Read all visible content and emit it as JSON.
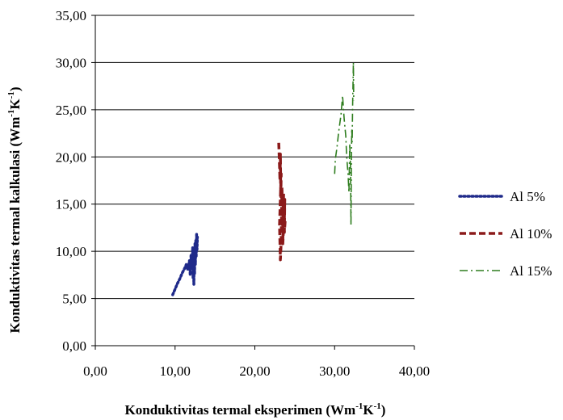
{
  "chart_data": {
    "type": "line",
    "xlabel": {
      "main": "Konduktivitas termal eksperimen (Wm",
      "sup1": "-1",
      "mid": "K",
      "sup2": "-1",
      "end": ")"
    },
    "ylabel": {
      "main": "Konduktivitas termal kalkulasi (Wm",
      "sup1": "-1",
      "mid": "K",
      "sup2": "-1",
      "end": ")"
    },
    "xlim": [
      0,
      40
    ],
    "ylim": [
      0,
      35
    ],
    "xticks": [
      "0,00",
      "10,00",
      "20,00",
      "30,00",
      "40,00"
    ],
    "yticks": [
      "0,00",
      "5,00",
      "10,00",
      "15,00",
      "20,00",
      "25,00",
      "30,00",
      "35,00"
    ],
    "grid": "horizontal",
    "legend_position": "right",
    "series": [
      {
        "name": "Al 5%",
        "color": "#1f2a8a",
        "style": "dotted",
        "points": [
          [
            9.7,
            5.4
          ],
          [
            10.0,
            6.0
          ],
          [
            10.3,
            6.6
          ],
          [
            10.6,
            7.1
          ],
          [
            10.9,
            7.7
          ],
          [
            11.2,
            8.2
          ],
          [
            11.4,
            8.6
          ],
          [
            11.6,
            8.0
          ],
          [
            11.8,
            9.0
          ],
          [
            11.9,
            7.5
          ],
          [
            12.0,
            9.6
          ],
          [
            12.1,
            8.4
          ],
          [
            12.2,
            10.4
          ],
          [
            12.25,
            7.2
          ],
          [
            12.3,
            8.9
          ],
          [
            12.35,
            6.5
          ],
          [
            12.4,
            9.8
          ],
          [
            12.45,
            7.6
          ],
          [
            12.5,
            10.8
          ],
          [
            12.55,
            8.6
          ],
          [
            12.6,
            11.2
          ],
          [
            12.65,
            9.4
          ],
          [
            12.7,
            11.8
          ],
          [
            12.75,
            10.2
          ],
          [
            12.8,
            11.5
          ]
        ]
      },
      {
        "name": "Al 10%",
        "color": "#8b1a1a",
        "style": "dashed",
        "points": [
          [
            23.0,
            21.5
          ],
          [
            23.1,
            19.0
          ],
          [
            23.15,
            17.5
          ],
          [
            23.2,
            20.3
          ],
          [
            23.25,
            15.8
          ],
          [
            23.3,
            18.2
          ],
          [
            23.1,
            12.8
          ],
          [
            23.2,
            9.1
          ],
          [
            23.3,
            11.0
          ],
          [
            23.35,
            14.2
          ],
          [
            23.4,
            16.8
          ],
          [
            23.45,
            13.0
          ],
          [
            23.5,
            12.3
          ],
          [
            23.55,
            15.0
          ],
          [
            23.6,
            16.2
          ],
          [
            23.5,
            10.8
          ],
          [
            23.6,
            12.6
          ],
          [
            23.65,
            14.6
          ],
          [
            23.7,
            13.4
          ],
          [
            23.75,
            15.5
          ],
          [
            23.7,
            12.0
          ],
          [
            23.8,
            13.2
          ]
        ]
      },
      {
        "name": "Al 15%",
        "color": "#2e7d1e",
        "style": "dashdot",
        "points": [
          [
            30.0,
            18.2
          ],
          [
            30.1,
            19.8
          ],
          [
            30.3,
            21.0
          ],
          [
            30.5,
            22.6
          ],
          [
            30.8,
            24.5
          ],
          [
            31.0,
            26.5
          ],
          [
            31.2,
            24.0
          ],
          [
            31.4,
            22.2
          ],
          [
            31.5,
            20.2
          ],
          [
            31.7,
            18.0
          ],
          [
            31.8,
            16.2
          ],
          [
            31.9,
            21.4
          ],
          [
            32.0,
            18.8
          ],
          [
            32.05,
            12.8
          ],
          [
            32.1,
            19.6
          ],
          [
            32.15,
            23.0
          ],
          [
            32.2,
            21.6
          ],
          [
            32.25,
            25.2
          ],
          [
            32.3,
            27.6
          ],
          [
            32.35,
            30.0
          ],
          [
            32.4,
            26.0
          ]
        ]
      }
    ]
  }
}
